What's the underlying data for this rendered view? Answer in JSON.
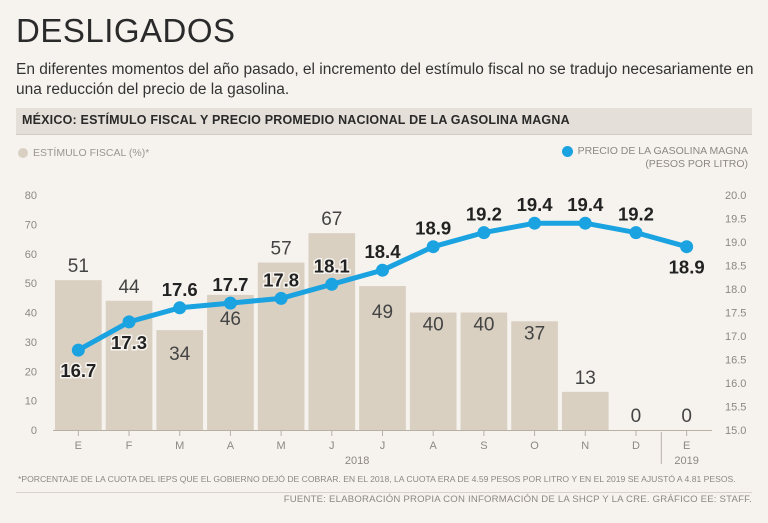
{
  "header": {
    "title": "DESLIGADOS",
    "subtitle": "En diferentes momentos del año pasado, el incremento del estímulo fiscal no se tradujo necesariamente en una reducción del precio de la gasolina."
  },
  "banner": {
    "label": "MÉXICO: ESTÍMULO FISCAL Y PRECIO PROMEDIO NACIONAL DE LA GASOLINA MAGNA"
  },
  "legend": {
    "left": "ESTÍMULO FISCAL (%)*",
    "right_line1": "PRECIO DE LA GASOLINA MAGNA",
    "right_line2": "(PESOS POR LITRO)"
  },
  "colors": {
    "bar": "#d9d0c2",
    "line": "#1aa3e0",
    "text": "#2a2a2a",
    "axis": "#8c8781",
    "banner": "#e4dfd8"
  },
  "chart_data": {
    "type": "bar+line",
    "categories": [
      "E",
      "F",
      "M",
      "A",
      "M",
      "J",
      "J",
      "A",
      "S",
      "O",
      "N",
      "D",
      "E"
    ],
    "year_labels": [
      {
        "label": "2018",
        "from": 0,
        "to": 11
      },
      {
        "label": "2019",
        "from": 12,
        "to": 12
      }
    ],
    "series": [
      {
        "name": "ESTÍMULO FISCAL (%)*",
        "type": "bar",
        "axis": "left",
        "values": [
          51,
          44,
          34,
          46,
          57,
          67,
          49,
          40,
          40,
          37,
          13,
          0,
          0
        ],
        "labels": [
          "51",
          "44",
          "34",
          "46",
          "57",
          "67",
          "49",
          "40",
          "40",
          "37",
          "13",
          "0",
          "0"
        ]
      },
      {
        "name": "PRECIO DE LA GASOLINA MAGNA (PESOS POR LITRO)",
        "type": "line",
        "axis": "right",
        "values": [
          16.7,
          17.3,
          17.6,
          17.7,
          17.8,
          18.1,
          18.4,
          18.9,
          19.2,
          19.4,
          19.4,
          19.2,
          18.9
        ],
        "labels": [
          "16.7",
          "17.3",
          "17.6",
          "17.7",
          "17.8",
          "18.1",
          "18.4",
          "18.9",
          "19.2",
          "19.4",
          "19.4",
          "19.2",
          "18.9"
        ]
      }
    ],
    "y_left": {
      "min": 0,
      "max": 80,
      "ticks": [
        "0",
        "10",
        "20",
        "30",
        "40",
        "50",
        "60",
        "70",
        "80"
      ]
    },
    "y_right": {
      "min": 15.0,
      "max": 20.0,
      "ticks": [
        "15.0",
        "15.5",
        "16.0",
        "16.5",
        "17.0",
        "17.5",
        "18.0",
        "18.5",
        "19.0",
        "19.5",
        "20.0"
      ]
    },
    "grid": false
  },
  "footnote": "*PORCENTAJE DE LA CUOTA DEL IEPS QUE EL GOBIERNO DEJÓ DE COBRAR. EN EL 2018, LA CUOTA ERA DE 4.59 PESOS POR LITRO Y EN EL 2019 SE AJUSTÓ A 4.81 PESOS.",
  "source": "FUENTE: ELABORACIÓN PROPIA CON INFORMACIÓN DE LA SHCP Y LA CRE. GRÁFICO EE: STAFF."
}
